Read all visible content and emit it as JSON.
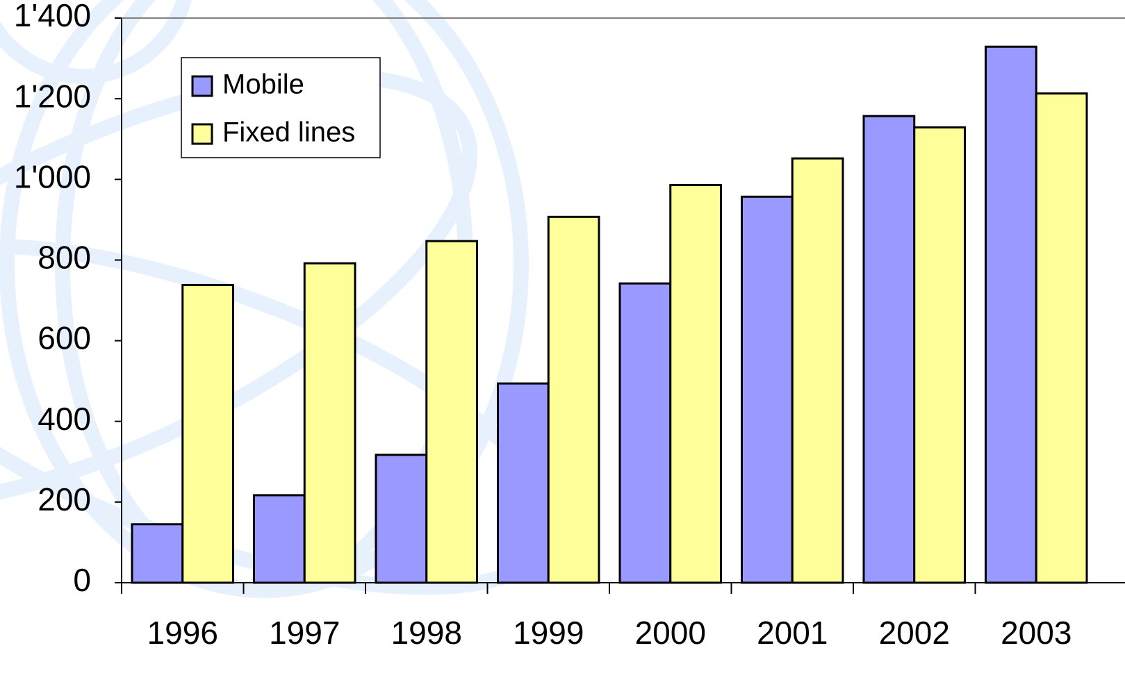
{
  "chart_data": {
    "type": "bar",
    "categories": [
      "1996",
      "1997",
      "1998",
      "1999",
      "2000",
      "2001",
      "2002",
      "2003"
    ],
    "series": [
      {
        "name": "Mobile",
        "color": "#9999ff",
        "values": [
          145,
          217,
          317,
          494,
          742,
          957,
          1157,
          1329
        ]
      },
      {
        "name": "Fixed lines",
        "color": "#ffff99",
        "values": [
          738,
          792,
          847,
          907,
          986,
          1052,
          1129,
          1213
        ]
      }
    ],
    "ylim": [
      0,
      1400
    ],
    "yticks": [
      0,
      200,
      400,
      600,
      800,
      {
        "value": 1000,
        "label": "1'000"
      },
      {
        "value": 1200,
        "label": "1'200"
      },
      {
        "value": 1400,
        "label": "1'400"
      }
    ],
    "grid": false,
    "legend": "upper-left"
  }
}
